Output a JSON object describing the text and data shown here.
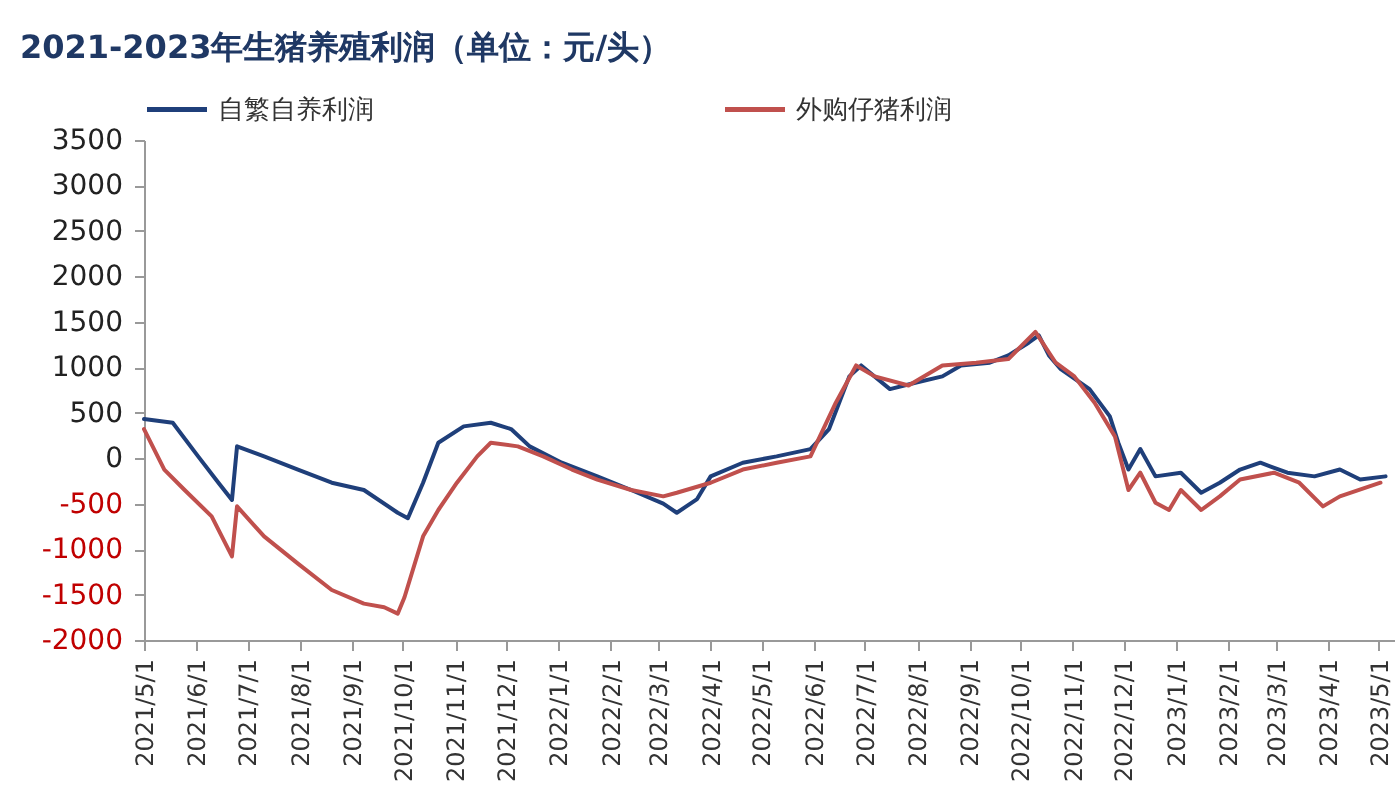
{
  "chart_data": {
    "type": "line",
    "title": "2021-2023年生猪养殖利润（单位：元/头）",
    "legend": "top",
    "grid": false,
    "line_style": "solid",
    "marker": "none",
    "ylim": [
      -2000,
      3500
    ],
    "yticks": [
      -2000,
      -1500,
      -1000,
      -500,
      0,
      500,
      1000,
      1500,
      2000,
      2500,
      3000,
      3500
    ],
    "xlim": [
      "2021-05-01",
      "2023-05-10"
    ],
    "xticks": [
      {
        "value": "2021-05-01",
        "label": "2021/5/1"
      },
      {
        "value": "2021-06-01",
        "label": "2021/6/1"
      },
      {
        "value": "2021-07-01",
        "label": "2021/7/1"
      },
      {
        "value": "2021-08-01",
        "label": "2021/8/1"
      },
      {
        "value": "2021-09-01",
        "label": "2021/9/1"
      },
      {
        "value": "2021-10-01",
        "label": "2021/10/1"
      },
      {
        "value": "2021-11-01",
        "label": "2021/11/1"
      },
      {
        "value": "2021-12-01",
        "label": "2021/12/1"
      },
      {
        "value": "2022-01-01",
        "label": "2022/1/1"
      },
      {
        "value": "2022-02-01",
        "label": "2022/2/1"
      },
      {
        "value": "2022-03-01",
        "label": "2022/3/1"
      },
      {
        "value": "2022-04-01",
        "label": "2022/4/1"
      },
      {
        "value": "2022-05-01",
        "label": "2022/5/1"
      },
      {
        "value": "2022-06-01",
        "label": "2022/6/1"
      },
      {
        "value": "2022-07-01",
        "label": "2022/7/1"
      },
      {
        "value": "2022-08-01",
        "label": "2022/8/1"
      },
      {
        "value": "2022-09-01",
        "label": "2022/9/1"
      },
      {
        "value": "2022-10-01",
        "label": "2022/10/1"
      },
      {
        "value": "2022-11-01",
        "label": "2022/11/1"
      },
      {
        "value": "2022-12-01",
        "label": "2022/12/1"
      },
      {
        "value": "2023-01-01",
        "label": "2023/1/1"
      },
      {
        "value": "2023-02-01",
        "label": "2023/2/1"
      },
      {
        "value": "2023-03-01",
        "label": "2023/3/1"
      },
      {
        "value": "2023-04-01",
        "label": "2023/4/1"
      },
      {
        "value": "2023-05-01",
        "label": "2023/5/1"
      }
    ],
    "series": [
      {
        "name": "自繁自养利润",
        "color": "#1f3f7a",
        "x": [
          "2021-05-01",
          "2021-05-18",
          "2021-06-02",
          "2021-06-14",
          "2021-06-22",
          "2021-06-25",
          "2021-07-11",
          "2021-07-31",
          "2021-08-20",
          "2021-09-08",
          "2021-09-28",
          "2021-10-04",
          "2021-10-13",
          "2021-10-22",
          "2021-11-06",
          "2021-11-22",
          "2021-12-04",
          "2021-12-15",
          "2022-01-03",
          "2022-01-24",
          "2022-02-13",
          "2022-03-04",
          "2022-03-12",
          "2022-03-24",
          "2022-04-01",
          "2022-04-20",
          "2022-05-10",
          "2022-05-30",
          "2022-06-10",
          "2022-06-22",
          "2022-06-29",
          "2022-07-16",
          "2022-07-31",
          "2022-08-16",
          "2022-08-27",
          "2022-09-13",
          "2022-09-24",
          "2022-10-06",
          "2022-10-12",
          "2022-10-18",
          "2022-10-25",
          "2022-11-11",
          "2022-11-23",
          "2022-11-28",
          "2022-12-04",
          "2022-12-11",
          "2022-12-20",
          "2023-01-04",
          "2023-01-16",
          "2023-01-27",
          "2023-02-08",
          "2023-02-20",
          "2023-03-08",
          "2023-03-24",
          "2023-04-08",
          "2023-04-20",
          "2023-05-05"
        ],
        "values": [
          430,
          390,
          20,
          -270,
          -460,
          130,
          20,
          -125,
          -270,
          -350,
          -600,
          -660,
          -270,
          170,
          350,
          390,
          320,
          130,
          -50,
          -200,
          -350,
          -500,
          -600,
          -450,
          -200,
          -50,
          20,
          100,
          320,
          900,
          1020,
          760,
          830,
          900,
          1020,
          1050,
          1130,
          1270,
          1350,
          1130,
          980,
          760,
          460,
          170,
          -125,
          100,
          -200,
          -160,
          -380,
          -270,
          -125,
          -50,
          -160,
          -200,
          -125,
          -235,
          -200
        ]
      },
      {
        "name": "外购仔猪利润",
        "color": "#c0504d",
        "x": [
          "2021-05-01",
          "2021-05-13",
          "2021-05-25",
          "2021-06-10",
          "2021-06-22",
          "2021-06-25",
          "2021-07-11",
          "2021-07-31",
          "2021-08-20",
          "2021-09-08",
          "2021-09-20",
          "2021-09-28",
          "2021-10-02",
          "2021-10-13",
          "2021-10-22",
          "2021-11-02",
          "2021-11-14",
          "2021-11-22",
          "2021-12-08",
          "2021-12-23",
          "2022-01-09",
          "2022-01-24",
          "2022-02-13",
          "2022-03-04",
          "2022-03-12",
          "2022-04-01",
          "2022-04-20",
          "2022-05-10",
          "2022-05-30",
          "2022-06-14",
          "2022-06-26",
          "2022-07-07",
          "2022-07-27",
          "2022-08-16",
          "2022-09-05",
          "2022-09-24",
          "2022-10-10",
          "2022-10-22",
          "2022-11-02",
          "2022-11-14",
          "2022-11-26",
          "2022-12-04",
          "2022-12-11",
          "2022-12-20",
          "2022-12-28",
          "2023-01-04",
          "2023-01-16",
          "2023-01-27",
          "2023-02-08",
          "2023-02-28",
          "2023-03-15",
          "2023-03-29",
          "2023-04-08",
          "2023-05-02"
        ],
        "values": [
          320,
          -125,
          -350,
          -640,
          -1080,
          -530,
          -860,
          -1160,
          -1450,
          -1600,
          -1640,
          -1710,
          -1530,
          -860,
          -570,
          -270,
          20,
          170,
          130,
          20,
          -125,
          -235,
          -350,
          -420,
          -380,
          -270,
          -125,
          -50,
          20,
          610,
          1020,
          900,
          800,
          1020,
          1050,
          1090,
          1390,
          1050,
          900,
          610,
          240,
          -350,
          -160,
          -490,
          -570,
          -350,
          -570,
          -420,
          -235,
          -160,
          -270,
          -530,
          -420,
          -270
        ]
      }
    ]
  }
}
